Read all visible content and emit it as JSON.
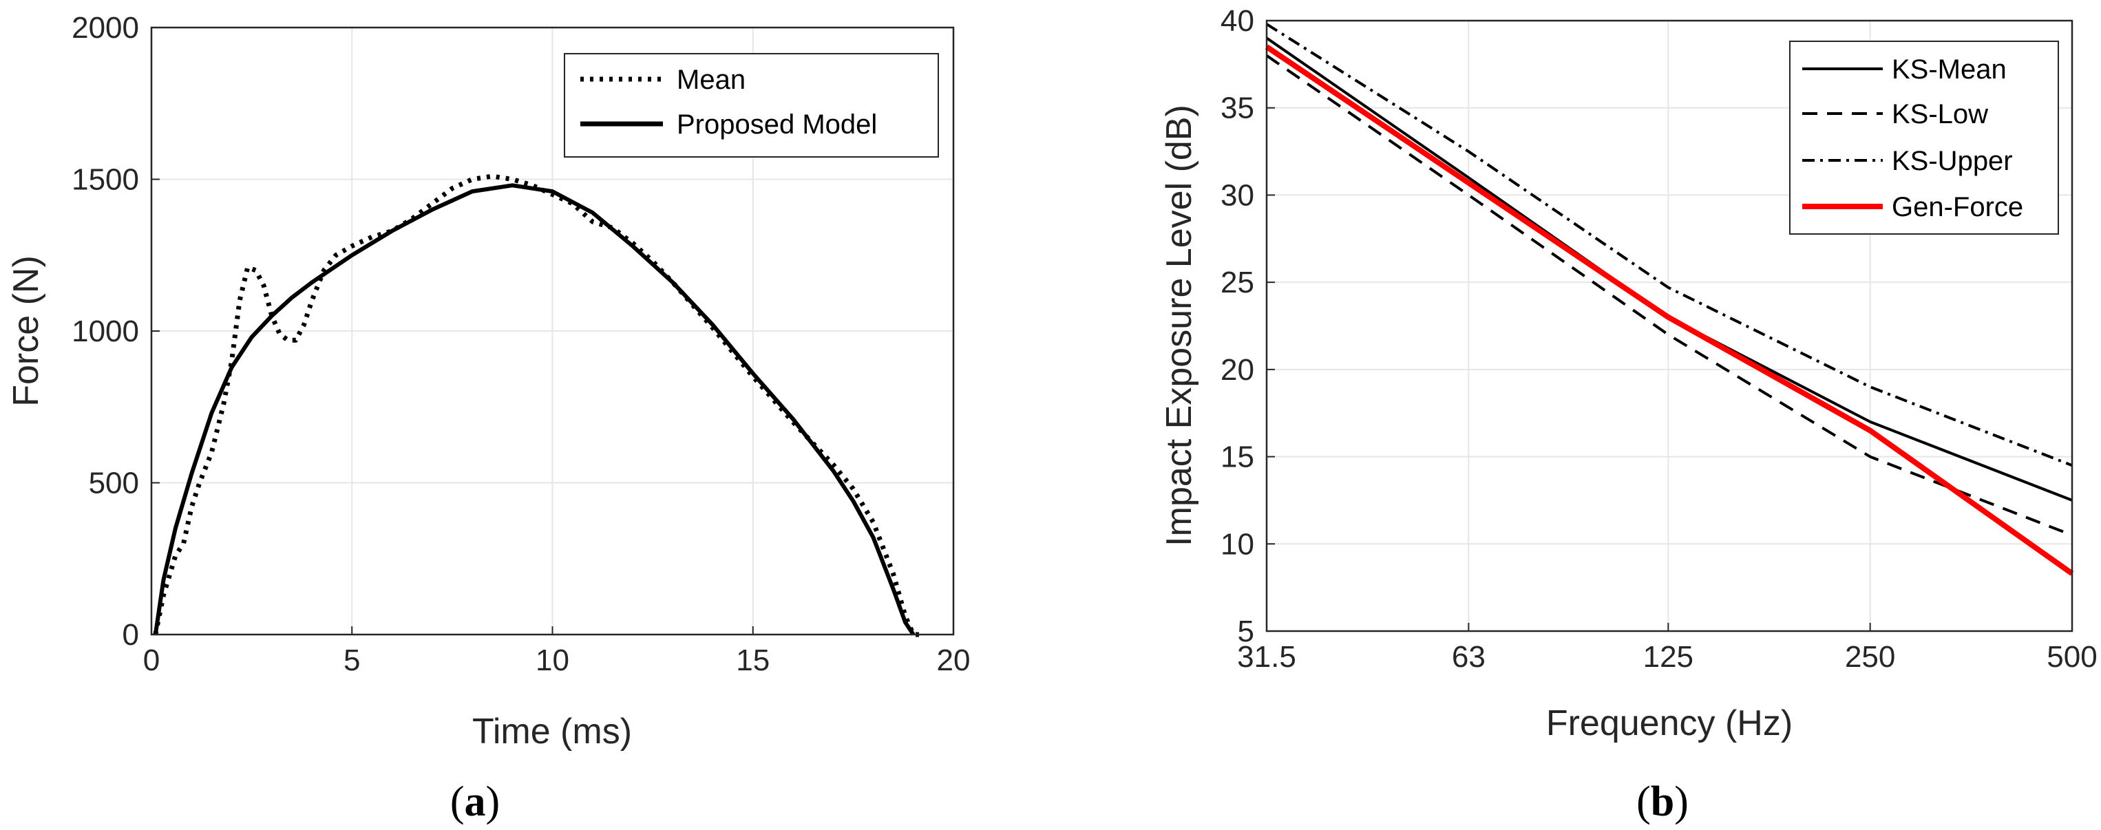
{
  "chart_data": [
    {
      "id": "a",
      "type": "line",
      "panel_label": "a",
      "xlabel": "Time (ms)",
      "ylabel": "Force (N)",
      "xlim": [
        0,
        20
      ],
      "ylim": [
        0,
        2000
      ],
      "xticks": [
        0,
        5,
        10,
        15,
        20
      ],
      "yticks": [
        0,
        500,
        1000,
        1500,
        2000
      ],
      "grid": true,
      "legend_position": "top-right",
      "series": [
        {
          "name": "Mean",
          "style": "dotted",
          "color": "#000000",
          "x": [
            0.1,
            0.3,
            0.6,
            0.8,
            1.0,
            1.2,
            1.5,
            1.8,
            2.0,
            2.2,
            2.4,
            2.6,
            2.8,
            3.0,
            3.2,
            3.4,
            3.6,
            3.8,
            4.0,
            4.3,
            4.6,
            5.0,
            5.5,
            6.0,
            6.5,
            7.0,
            7.5,
            8.0,
            8.5,
            9.0,
            9.5,
            10.0,
            10.5,
            11.0,
            11.5,
            12.0,
            12.5,
            13.0,
            14.0,
            15.0,
            16.0,
            16.5,
            17.0,
            17.5,
            18.0,
            18.5,
            18.8,
            19.0,
            19.2
          ],
          "y": [
            0,
            130,
            260,
            300,
            420,
            500,
            600,
            760,
            900,
            1100,
            1210,
            1200,
            1150,
            1050,
            990,
            970,
            970,
            1020,
            1100,
            1200,
            1250,
            1280,
            1310,
            1330,
            1370,
            1420,
            1470,
            1500,
            1510,
            1500,
            1480,
            1450,
            1420,
            1360,
            1340,
            1290,
            1230,
            1160,
            1010,
            850,
            700,
            630,
            560,
            480,
            370,
            200,
            60,
            0,
            0
          ]
        },
        {
          "name": "Proposed Model",
          "style": "solid",
          "color": "#000000",
          "x": [
            0.1,
            0.3,
            0.6,
            1.0,
            1.5,
            2.0,
            2.5,
            3.0,
            3.5,
            4.0,
            5.0,
            6.0,
            7.0,
            8.0,
            9.0,
            10.0,
            11.0,
            12.0,
            13.0,
            14.0,
            15.0,
            16.0,
            17.0,
            17.5,
            18.0,
            18.5,
            18.8,
            19.0
          ],
          "y": [
            0,
            180,
            350,
            530,
            730,
            880,
            980,
            1050,
            1110,
            1160,
            1250,
            1330,
            1400,
            1460,
            1480,
            1460,
            1390,
            1280,
            1160,
            1020,
            860,
            710,
            540,
            440,
            320,
            150,
            40,
            0
          ]
        }
      ]
    },
    {
      "id": "b",
      "type": "line",
      "panel_label": "b",
      "xlabel": "Frequency (Hz)",
      "ylabel": "Impact Exposure Level (dB)",
      "x_scale": "log",
      "categories": [
        "31.5",
        "63",
        "125",
        "250",
        "500"
      ],
      "x_values": [
        31.5,
        63,
        125,
        250,
        500
      ],
      "ylim": [
        5,
        40
      ],
      "yticks": [
        5,
        10,
        15,
        20,
        25,
        30,
        35,
        40
      ],
      "grid": true,
      "legend_position": "top-right",
      "series": [
        {
          "name": "KS-Mean",
          "style": "solid",
          "color": "#000000",
          "x": [
            31.5,
            63,
            125,
            250,
            500
          ],
          "y": [
            39,
            31,
            23,
            17,
            12.5
          ]
        },
        {
          "name": "KS-Low",
          "style": "dashed",
          "color": "#000000",
          "x": [
            31.5,
            63,
            125,
            250,
            500
          ],
          "y": [
            38,
            30,
            22,
            15,
            10.5
          ]
        },
        {
          "name": "KS-Upper",
          "style": "dashdot",
          "color": "#000000",
          "x": [
            31.5,
            63,
            125,
            250,
            500
          ],
          "y": [
            39.8,
            32.5,
            24.7,
            19,
            14.5
          ]
        },
        {
          "name": "Gen-Force",
          "style": "solid",
          "color": "#ff0000",
          "x": [
            31.5,
            63,
            125,
            250,
            500
          ],
          "y": [
            38.5,
            30.7,
            23,
            16.5,
            8.3
          ]
        }
      ]
    }
  ]
}
